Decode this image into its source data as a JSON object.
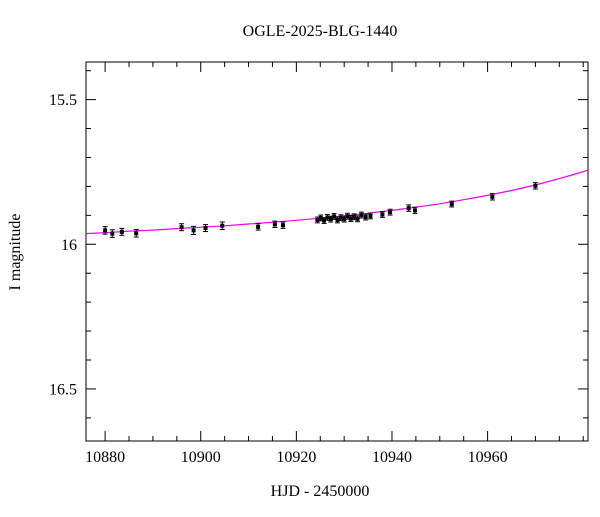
{
  "figure": {
    "background": "#ffffff"
  },
  "chart_data": {
    "type": "scatter",
    "title": "OGLE-2025-BLG-1440",
    "xlabel": "HJD - 2450000",
    "ylabel": "I magnitude",
    "xlim": [
      10876,
      10981
    ],
    "ylim_top_to_bottom": [
      15.37,
      16.68
    ],
    "y_axis_inverted": true,
    "grid": false,
    "legend": "none",
    "x_ticks": {
      "major": [
        10880,
        10900,
        10920,
        10940,
        10960
      ],
      "labels": [
        "10880",
        "10900",
        "10920",
        "10940",
        "10960"
      ],
      "minor_step": 5
    },
    "y_ticks": {
      "major": [
        15.5,
        16.0,
        16.5
      ],
      "labels": [
        "15.5",
        "16",
        "16.5"
      ],
      "minor_step": 0.1
    },
    "colors": {
      "model_curve": "#ee00ee",
      "data_points": "#000000",
      "axes": "#000000"
    },
    "series": [
      {
        "name": "I-band photometry",
        "type": "scatter_errorbar",
        "points": [
          [
            10880.0,
            15.952,
            0.013
          ],
          [
            10881.5,
            15.963,
            0.013
          ],
          [
            10883.5,
            15.957,
            0.012
          ],
          [
            10886.5,
            15.962,
            0.013
          ],
          [
            10896.0,
            15.941,
            0.012
          ],
          [
            10898.5,
            15.952,
            0.014
          ],
          [
            10901.0,
            15.944,
            0.012
          ],
          [
            10904.5,
            15.936,
            0.013
          ],
          [
            10912.0,
            15.94,
            0.011
          ],
          [
            10915.5,
            15.931,
            0.011
          ],
          [
            10917.2,
            15.934,
            0.011
          ],
          [
            10924.4,
            15.916,
            0.01
          ],
          [
            10925.1,
            15.909,
            0.01
          ],
          [
            10925.8,
            15.918,
            0.01
          ],
          [
            10926.5,
            15.907,
            0.01
          ],
          [
            10927.2,
            15.913,
            0.01
          ],
          [
            10927.9,
            15.904,
            0.01
          ],
          [
            10928.6,
            15.916,
            0.01
          ],
          [
            10929.3,
            15.908,
            0.01
          ],
          [
            10930.0,
            15.913,
            0.01
          ],
          [
            10930.7,
            15.903,
            0.01
          ],
          [
            10931.4,
            15.911,
            0.01
          ],
          [
            10932.1,
            15.905,
            0.01
          ],
          [
            10932.8,
            15.912,
            0.01
          ],
          [
            10933.6,
            15.899,
            0.01
          ],
          [
            10934.5,
            15.906,
            0.01
          ],
          [
            10935.5,
            15.902,
            0.01
          ],
          [
            10938.0,
            15.897,
            0.01
          ],
          [
            10939.6,
            15.889,
            0.01
          ],
          [
            10943.5,
            15.875,
            0.011
          ],
          [
            10944.8,
            15.883,
            0.011
          ],
          [
            10952.5,
            15.861,
            0.01
          ],
          [
            10961.0,
            15.836,
            0.011
          ],
          [
            10970.0,
            15.798,
            0.011
          ]
        ]
      },
      {
        "name": "microlensing model",
        "type": "line",
        "points": [
          [
            10876,
            15.963
          ],
          [
            10880,
            15.96
          ],
          [
            10885,
            15.955
          ],
          [
            10890,
            15.951
          ],
          [
            10895,
            15.946
          ],
          [
            10900,
            15.941
          ],
          [
            10905,
            15.936
          ],
          [
            10910,
            15.93
          ],
          [
            10915,
            15.924
          ],
          [
            10920,
            15.917
          ],
          [
            10925,
            15.91
          ],
          [
            10930,
            15.902
          ],
          [
            10935,
            15.893
          ],
          [
            10940,
            15.883
          ],
          [
            10945,
            15.872
          ],
          [
            10950,
            15.86
          ],
          [
            10955,
            15.846
          ],
          [
            10960,
            15.831
          ],
          [
            10965,
            15.814
          ],
          [
            10970,
            15.795
          ],
          [
            10975,
            15.773
          ],
          [
            10978,
            15.759
          ],
          [
            10981,
            15.744
          ]
        ]
      }
    ]
  }
}
